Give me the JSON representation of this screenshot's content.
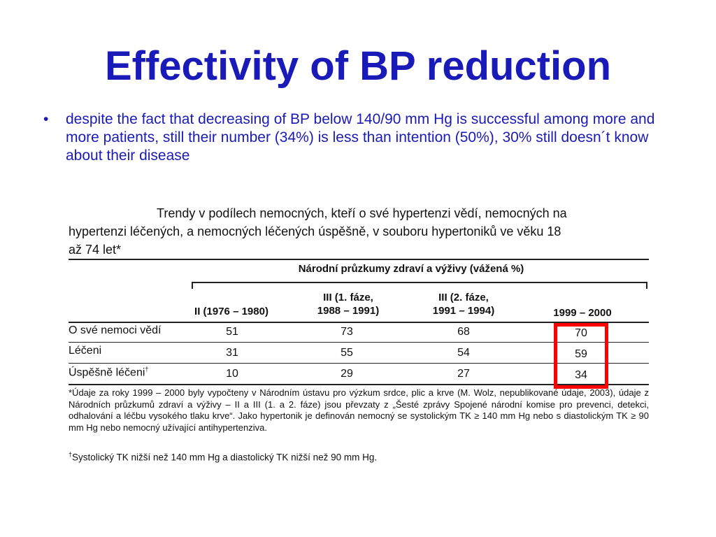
{
  "slide": {
    "title": "Effectivity of BP reduction",
    "bullets": [
      "despite the fact that decreasing of BP below 140/90 mm Hg is successful among more and more patients, still their number (34%) is less than intention (50%), 30% still doesn´t know about their disease"
    ],
    "bullet_glyph": "•"
  },
  "figure": {
    "caption_line1": "Trendy v podílech nemocných, kteří o své hypertenzi vědí, nemocných na",
    "caption_line2": "hypertenzi léčených, a nemocných léčených úspěšně, v souboru hypertoniků ve věku 18",
    "caption_line3": "až 74 let*",
    "survey_heading": "Národní průzkumy zdraví a výživy (vážená %)",
    "columns": [
      {
        "line1": "II (1976 – 1980)",
        "line2": ""
      },
      {
        "line1": "III (1. fáze,",
        "line2": "1988 – 1991)"
      },
      {
        "line1": "III (2. fáze,",
        "line2": "1991 – 1994)"
      },
      {
        "line1": "1999 – 2000",
        "line2": ""
      }
    ],
    "rows": [
      {
        "label": "O své nemoci vědí",
        "sup": "",
        "values": [
          "51",
          "73",
          "68",
          "70"
        ]
      },
      {
        "label": "Léčeni",
        "sup": "",
        "values": [
          "31",
          "55",
          "54",
          "59"
        ]
      },
      {
        "label": "Úspěšně léčeni",
        "sup": "†",
        "values": [
          "10",
          "29",
          "27",
          "34"
        ]
      }
    ],
    "highlight_color": "#ff0000",
    "footnote_star": "*Údaje za roky 1999 – 2000 byly vypočteny v Národním ústavu pro výzkum srdce, plic a krve (M. Wolz, nepublikované údaje, 2003), údaje z Národních průzkumů zdraví a výživy – II a III (1. a 2. fáze) jsou převzaty z „Šesté zprávy Spojené národní komise pro prevenci, detekci, odhalování a léčbu vysokého tlaku krve“. Jako hypertonik je definován nemocný se systolickým TK ≥ 140 mm Hg nebo s diastolickým TK ≥ 90 mm Hg nebo nemocný užívající antihypertenziva.",
    "footnote_dagger_mark": "†",
    "footnote_dagger": "Systolický TK nižší než 140 mm Hg a diastolický TK nižší než 90 mm Hg."
  },
  "colors": {
    "title": "#1a1ab8",
    "text": "#1a1ab8",
    "highlight": "#ff0000"
  }
}
